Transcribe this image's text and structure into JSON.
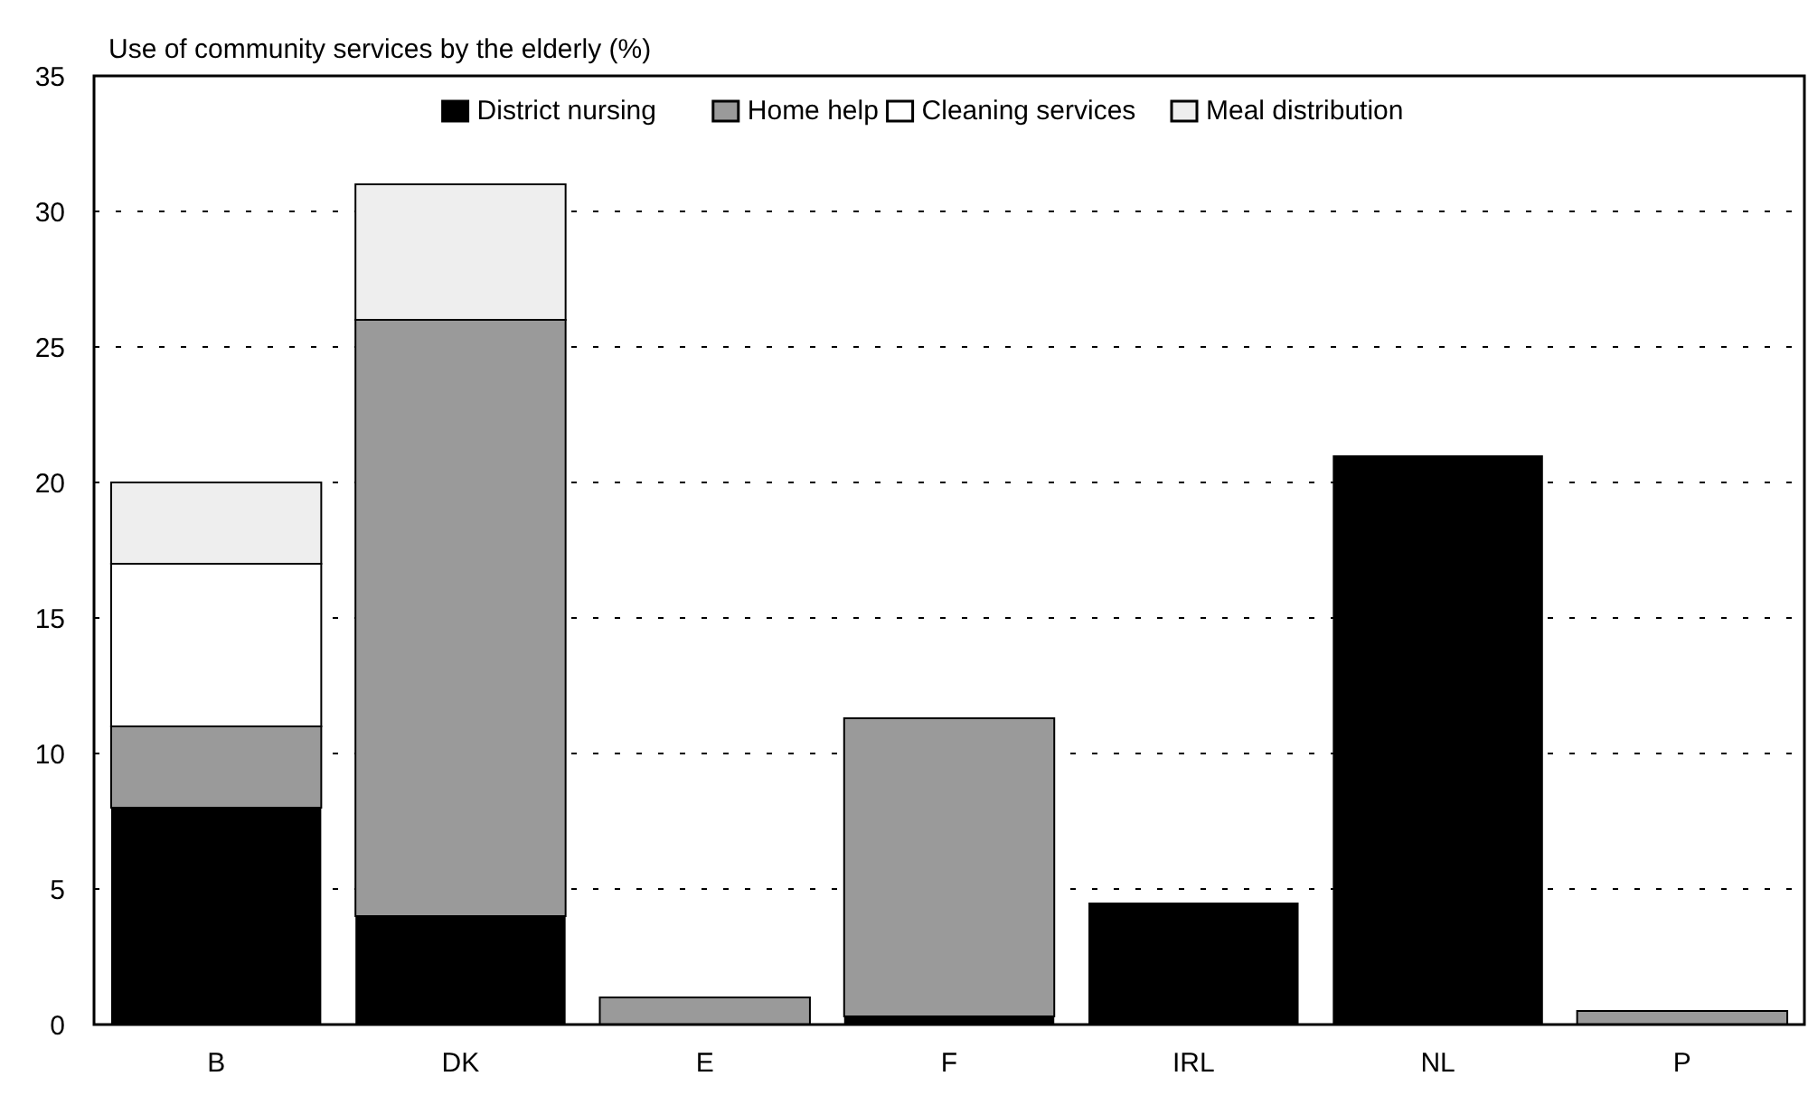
{
  "chart_data": {
    "type": "bar",
    "title": "Use of community services by the elderly (%)",
    "categories": [
      "B",
      "DK",
      "E",
      "F",
      "IRL",
      "NL",
      "P"
    ],
    "stacked": true,
    "ylim": [
      0,
      35
    ],
    "yticks": [
      0,
      5,
      10,
      15,
      20,
      25,
      30,
      35
    ],
    "grid": "y",
    "legend": "top",
    "series": [
      {
        "name": "District nursing",
        "color": "#000000",
        "values": [
          8,
          4,
          0,
          0.3,
          4.5,
          21,
          0
        ]
      },
      {
        "name": "Home help",
        "color": "#9a9a9a",
        "values": [
          3,
          22,
          1,
          11,
          0,
          0,
          0.5
        ]
      },
      {
        "name": "Cleaning services",
        "color": "#ffffff",
        "values": [
          6,
          0,
          0,
          0,
          0,
          0,
          0
        ]
      },
      {
        "name": "Meal distribution",
        "color": "#eeeeee",
        "values": [
          3,
          5,
          0,
          0,
          0,
          0,
          0
        ]
      }
    ]
  }
}
